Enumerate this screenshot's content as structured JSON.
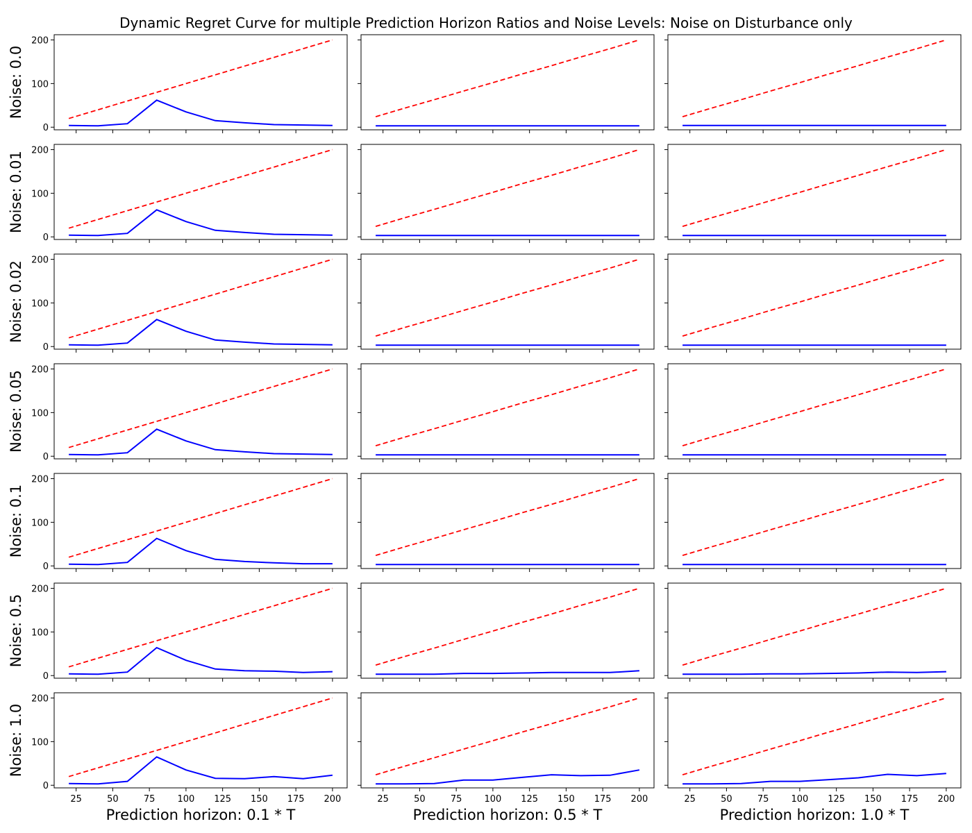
{
  "figure": {
    "title": "Dynamic Regret Curve for multiple Prediction Horizon Ratios and Noise Levels: Noise on Disturbance only"
  },
  "colors": {
    "bound_line": "#ff0000",
    "regret_line": "#0000ff",
    "axes": "#000000"
  },
  "chart_data": {
    "type": "line",
    "x": [
      20,
      40,
      60,
      80,
      100,
      120,
      140,
      160,
      180,
      200
    ],
    "xticks": [
      25,
      50,
      75,
      100,
      125,
      150,
      175,
      200
    ],
    "yticks": [
      0,
      100,
      200
    ],
    "xlim": [
      10,
      210
    ],
    "ylim": [
      -6,
      212
    ],
    "grid": false,
    "columns": [
      {
        "xlabel": "Prediction horizon: 0.1 * T"
      },
      {
        "xlabel": "Prediction horizon: 0.5 * T"
      },
      {
        "xlabel": "Prediction horizon: 1.0 * T"
      }
    ],
    "rows": [
      {
        "ylabel": "Noise: 0.0",
        "panels": [
          {
            "bound": [
              20,
              40,
              60,
              80,
              100,
              120,
              140,
              160,
              180,
              200
            ],
            "regret": [
              4,
              3,
              8,
              62,
              35,
              15,
              10,
              6,
              5,
              4
            ]
          },
          {
            "bound": [
              24,
              44,
              63,
              83,
              102,
              122,
              141,
              161,
              180,
              200
            ],
            "regret": [
              3,
              3,
              3,
              3,
              3,
              3,
              3,
              3,
              3,
              3
            ]
          },
          {
            "bound": [
              24,
              44,
              63,
              83,
              102,
              122,
              141,
              161,
              180,
              200
            ],
            "regret": [
              4,
              4,
              4,
              4,
              4,
              4,
              4,
              4,
              4,
              4
            ]
          }
        ]
      },
      {
        "ylabel": "Noise: 0.01",
        "panels": [
          {
            "bound": [
              20,
              40,
              60,
              80,
              100,
              120,
              140,
              160,
              180,
              200
            ],
            "regret": [
              4,
              3,
              8,
              62,
              35,
              15,
              10,
              6,
              5,
              4
            ]
          },
          {
            "bound": [
              24,
              44,
              63,
              83,
              102,
              122,
              141,
              161,
              180,
              200
            ],
            "regret": [
              3,
              3,
              3,
              3,
              3,
              3,
              3,
              3,
              3,
              3
            ]
          },
          {
            "bound": [
              24,
              44,
              63,
              83,
              102,
              122,
              141,
              161,
              180,
              200
            ],
            "regret": [
              3,
              3,
              3,
              3,
              3,
              3,
              3,
              3,
              3,
              3
            ]
          }
        ]
      },
      {
        "ylabel": "Noise: 0.02",
        "panels": [
          {
            "bound": [
              20,
              40,
              60,
              80,
              100,
              120,
              140,
              160,
              180,
              200
            ],
            "regret": [
              4,
              3,
              8,
              62,
              35,
              15,
              10,
              6,
              5,
              4
            ]
          },
          {
            "bound": [
              24,
              44,
              63,
              83,
              102,
              122,
              141,
              161,
              180,
              200
            ],
            "regret": [
              3,
              3,
              3,
              3,
              3,
              3,
              3,
              3,
              3,
              3
            ]
          },
          {
            "bound": [
              24,
              44,
              63,
              83,
              102,
              122,
              141,
              161,
              180,
              200
            ],
            "regret": [
              3,
              3,
              3,
              3,
              3,
              3,
              3,
              3,
              3,
              3
            ]
          }
        ]
      },
      {
        "ylabel": "Noise: 0.05",
        "panels": [
          {
            "bound": [
              20,
              40,
              60,
              80,
              100,
              120,
              140,
              160,
              180,
              200
            ],
            "regret": [
              4,
              3,
              8,
              62,
              35,
              15,
              10,
              6,
              5,
              4
            ]
          },
          {
            "bound": [
              24,
              44,
              63,
              83,
              102,
              122,
              141,
              161,
              180,
              200
            ],
            "regret": [
              3,
              3,
              3,
              3,
              3,
              3,
              3,
              3,
              3,
              3
            ]
          },
          {
            "bound": [
              24,
              44,
              63,
              83,
              102,
              122,
              141,
              161,
              180,
              200
            ],
            "regret": [
              3,
              3,
              3,
              3,
              3,
              3,
              3,
              3,
              3,
              3
            ]
          }
        ]
      },
      {
        "ylabel": "Noise: 0.1",
        "panels": [
          {
            "bound": [
              20,
              40,
              60,
              80,
              100,
              120,
              140,
              160,
              180,
              200
            ],
            "regret": [
              4,
              3,
              8,
              63,
              35,
              15,
              10,
              7,
              5,
              5
            ]
          },
          {
            "bound": [
              24,
              44,
              63,
              83,
              102,
              122,
              141,
              161,
              180,
              200
            ],
            "regret": [
              3,
              3,
              3,
              3,
              3,
              3,
              3,
              3,
              3,
              3
            ]
          },
          {
            "bound": [
              24,
              44,
              63,
              83,
              102,
              122,
              141,
              161,
              180,
              200
            ],
            "regret": [
              3,
              3,
              3,
              3,
              3,
              3,
              3,
              3,
              3,
              3
            ]
          }
        ]
      },
      {
        "ylabel": "Noise: 0.5",
        "panels": [
          {
            "bound": [
              20,
              40,
              60,
              80,
              100,
              120,
              140,
              160,
              180,
              200
            ],
            "regret": [
              4,
              3,
              8,
              64,
              35,
              15,
              11,
              10,
              7,
              9
            ]
          },
          {
            "bound": [
              24,
              44,
              63,
              83,
              102,
              122,
              141,
              161,
              180,
              200
            ],
            "regret": [
              3,
              3,
              3,
              5,
              5,
              6,
              7,
              7,
              7,
              11
            ]
          },
          {
            "bound": [
              24,
              44,
              63,
              83,
              102,
              122,
              141,
              161,
              180,
              200
            ],
            "regret": [
              3,
              3,
              3,
              4,
              4,
              5,
              6,
              8,
              7,
              9
            ]
          }
        ]
      },
      {
        "ylabel": "Noise: 1.0",
        "panels": [
          {
            "bound": [
              20,
              40,
              60,
              80,
              100,
              120,
              140,
              160,
              180,
              200
            ],
            "regret": [
              4,
              3,
              9,
              65,
              35,
              16,
              15,
              20,
              15,
              23
            ]
          },
          {
            "bound": [
              24,
              44,
              63,
              83,
              102,
              122,
              141,
              161,
              180,
              200
            ],
            "regret": [
              3,
              3,
              4,
              12,
              12,
              18,
              24,
              22,
              23,
              35
            ]
          },
          {
            "bound": [
              24,
              44,
              63,
              83,
              102,
              122,
              141,
              161,
              180,
              200
            ],
            "regret": [
              3,
              3,
              4,
              9,
              9,
              13,
              17,
              25,
              22,
              27
            ]
          }
        ]
      }
    ]
  }
}
